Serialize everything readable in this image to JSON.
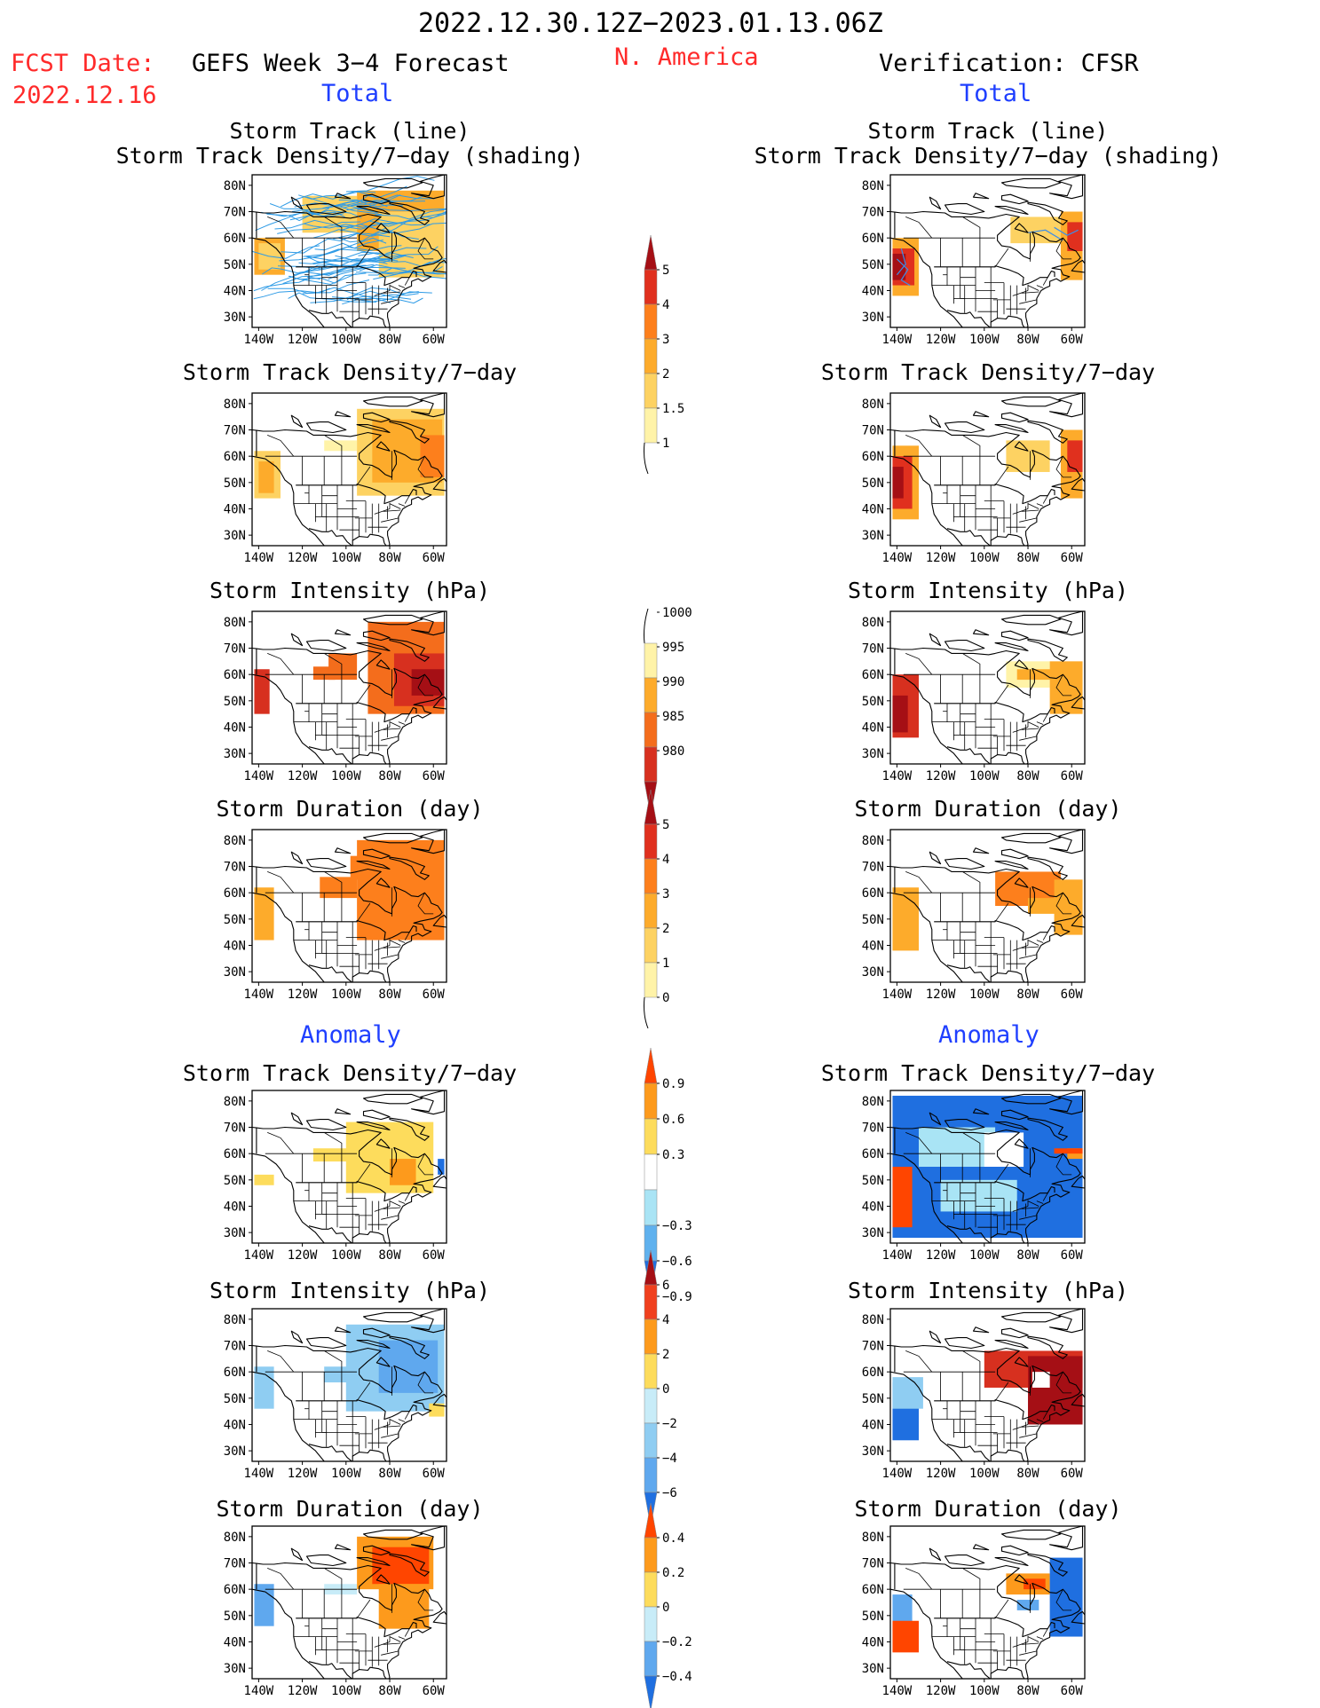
{
  "header": {
    "valid_period": "2022.12.30.12Z−2023.01.13.06Z",
    "fcst_date_label": "FCST Date:",
    "fcst_date": "2022.12.16",
    "region": "N. America",
    "left_title": "GEFS Week 3−4 Forecast",
    "right_title": "Verification: CFSR"
  },
  "sections": {
    "total_label": "Total",
    "anomaly_label": "Anomaly"
  },
  "panel_titles": {
    "track": "Storm Track (line)",
    "track_sub": "Storm Track Density/7−day (shading)",
    "density": "Storm Track Density/7−day",
    "intensity": "Storm Intensity (hPa)",
    "duration": "Storm Duration (day)"
  },
  "axes": {
    "lat_ticks": [
      "80N",
      "70N",
      "60N",
      "50N",
      "40N",
      "30N"
    ],
    "lon_ticks": [
      "140W",
      "120W",
      "100W",
      "80W",
      "60W"
    ]
  },
  "colorbars": [
    {
      "id": "density_total",
      "labels": [
        "5",
        "4",
        "3",
        "2",
        "1.5",
        "1"
      ],
      "colors": [
        "#a50f15",
        "#e0301e",
        "#fd7f1c",
        "#fdab2b",
        "#fdd262",
        "#fff3a8"
      ],
      "open_end": "bottom"
    },
    {
      "id": "intensity_total",
      "labels": [
        "1000",
        "995",
        "990",
        "985",
        "980"
      ],
      "colors": [
        "#fff3a8",
        "#fdab2b",
        "#f46d1c",
        "#d7301f",
        "#a50f15"
      ],
      "open_end": "top"
    },
    {
      "id": "duration_total",
      "labels": [
        "5",
        "4",
        "3",
        "2",
        "1",
        "0"
      ],
      "colors": [
        "#a50f15",
        "#e0301e",
        "#fd7f1c",
        "#fdab2b",
        "#fdd262",
        "#fff3a8"
      ],
      "open_end": "bottom"
    },
    {
      "id": "density_anom",
      "labels": [
        "0.9",
        "0.6",
        "0.3",
        "−0.3",
        "−0.6",
        "−0.9"
      ],
      "colors": [
        "#ff4500",
        "#fd9a1c",
        "#fddc5c",
        "#ffffff",
        "#a9e4f5",
        "#5fb1ee",
        "#1f6fe0"
      ]
    },
    {
      "id": "intensity_anom",
      "labels": [
        "6",
        "4",
        "2",
        "0",
        "−2",
        "−4",
        "−6"
      ],
      "colors": [
        "#a50f15",
        "#f0401e",
        "#fd9a1c",
        "#fddc5c",
        "#c8ecf8",
        "#8fcdf2",
        "#5fa8ee",
        "#1f6fe0"
      ]
    },
    {
      "id": "duration_anom",
      "labels": [
        "0.4",
        "0.2",
        "0",
        "−0.2",
        "−0.4"
      ],
      "colors": [
        "#ff4500",
        "#fd9a1c",
        "#fddc5c",
        "#c8ecf8",
        "#5fa8ee",
        "#1f6fe0"
      ]
    }
  ],
  "panels": [
    {
      "col": "forecast",
      "type": "track_total",
      "fields": [
        [
          -142,
          -128,
          46,
          60,
          "#fdab2b"
        ],
        [
          -140,
          -130,
          48,
          58,
          "#fdd262"
        ],
        [
          -120,
          -95,
          62,
          76,
          "#fdd262"
        ],
        [
          -95,
          -55,
          55,
          78,
          "#fdab2b"
        ],
        [
          -85,
          -55,
          45,
          70,
          "#fdd262"
        ]
      ],
      "tracks": true
    },
    {
      "col": "forecast",
      "type": "density_total",
      "fields": [
        [
          -142,
          -130,
          44,
          62,
          "#fdd262"
        ],
        [
          -140,
          -133,
          46,
          58,
          "#fdab2b"
        ],
        [
          -110,
          -95,
          62,
          66,
          "#fff3a8"
        ],
        [
          -95,
          -55,
          45,
          78,
          "#fdd262"
        ],
        [
          -88,
          -56,
          50,
          74,
          "#fdab2b"
        ],
        [
          -66,
          -55,
          52,
          68,
          "#fd7f1c"
        ]
      ]
    },
    {
      "col": "forecast",
      "type": "intensity_total",
      "fields": [
        [
          -142,
          -135,
          45,
          62,
          "#d7301f"
        ],
        [
          -115,
          -105,
          58,
          63,
          "#f46d1c"
        ],
        [
          -108,
          -95,
          58,
          68,
          "#f46d1c"
        ],
        [
          -90,
          -55,
          45,
          80,
          "#f46d1c"
        ],
        [
          -78,
          -55,
          48,
          68,
          "#d7301f"
        ],
        [
          -70,
          -55,
          52,
          62,
          "#a50f15"
        ]
      ]
    },
    {
      "col": "forecast",
      "type": "duration_total",
      "fields": [
        [
          -142,
          -133,
          42,
          62,
          "#fdab2b"
        ],
        [
          -112,
          -95,
          58,
          66,
          "#fd7f1c"
        ],
        [
          -98,
          -88,
          65,
          74,
          "#fd7f1c"
        ],
        [
          -95,
          -55,
          42,
          80,
          "#fd7f1c"
        ]
      ]
    },
    {
      "col": "forecast",
      "type": "density_anom",
      "fields": [
        [
          -142,
          -133,
          48,
          52,
          "#fddc5c"
        ],
        [
          -115,
          -95,
          57,
          62,
          "#fddc5c"
        ],
        [
          -100,
          -60,
          45,
          72,
          "#fddc5c"
        ],
        [
          -80,
          -68,
          48,
          58,
          "#fd9a1c"
        ],
        [
          -58,
          -55,
          52,
          58,
          "#1f6fe0"
        ]
      ]
    },
    {
      "col": "forecast",
      "type": "intensity_anom",
      "fields": [
        [
          -142,
          -133,
          46,
          62,
          "#8fcdf2"
        ],
        [
          -110,
          -95,
          56,
          62,
          "#8fcdf2"
        ],
        [
          -100,
          -55,
          45,
          78,
          "#8fcdf2"
        ],
        [
          -85,
          -58,
          52,
          72,
          "#5fa8ee"
        ],
        [
          -62,
          -55,
          43,
          48,
          "#fddc5c"
        ]
      ]
    },
    {
      "col": "forecast",
      "type": "duration_anom",
      "fields": [
        [
          -142,
          -133,
          46,
          62,
          "#5fa8ee"
        ],
        [
          -110,
          -95,
          58,
          62,
          "#c8ecf8"
        ],
        [
          -95,
          -60,
          60,
          80,
          "#fd9a1c"
        ],
        [
          -88,
          -62,
          62,
          76,
          "#ff4500"
        ],
        [
          -85,
          -62,
          45,
          62,
          "#fd9a1c"
        ]
      ]
    },
    {
      "col": "verification",
      "type": "track_total",
      "fields": [
        [
          -142,
          -130,
          38,
          60,
          "#fdab2b"
        ],
        [
          -142,
          -132,
          42,
          56,
          "#e0301e"
        ],
        [
          -142,
          -136,
          44,
          54,
          "#a50f15"
        ],
        [
          -88,
          -65,
          58,
          68,
          "#fdd262"
        ],
        [
          -65,
          -55,
          44,
          70,
          "#fdab2b"
        ],
        [
          -62,
          -55,
          55,
          66,
          "#e0301e"
        ]
      ],
      "tracks_verif": true
    },
    {
      "col": "verification",
      "type": "density_total",
      "fields": [
        [
          -142,
          -130,
          36,
          64,
          "#fdab2b"
        ],
        [
          -142,
          -133,
          40,
          60,
          "#e0301e"
        ],
        [
          -142,
          -137,
          44,
          56,
          "#a50f15"
        ],
        [
          -90,
          -70,
          54,
          66,
          "#fdd262"
        ],
        [
          -65,
          -55,
          44,
          70,
          "#fdab2b"
        ],
        [
          -62,
          -55,
          54,
          66,
          "#e0301e"
        ]
      ]
    },
    {
      "col": "verification",
      "type": "intensity_total",
      "fields": [
        [
          -142,
          -130,
          36,
          60,
          "#d7301f"
        ],
        [
          -142,
          -135,
          38,
          52,
          "#a50f15"
        ],
        [
          -90,
          -70,
          55,
          65,
          "#fff3a8"
        ],
        [
          -85,
          -65,
          58,
          62,
          "#fdab2b"
        ],
        [
          -70,
          -55,
          45,
          65,
          "#fdab2b"
        ]
      ]
    },
    {
      "col": "verification",
      "type": "duration_total",
      "fields": [
        [
          -142,
          -130,
          38,
          62,
          "#fdab2b"
        ],
        [
          -95,
          -65,
          55,
          68,
          "#fd7f1c"
        ],
        [
          -80,
          -62,
          52,
          58,
          "#fdab2b"
        ],
        [
          -68,
          -55,
          44,
          65,
          "#fdab2b"
        ]
      ]
    },
    {
      "col": "verification",
      "type": "density_anom",
      "fields": [
        [
          -142,
          -55,
          28,
          82,
          "#1f6fe0"
        ],
        [
          -130,
          -95,
          55,
          70,
          "#a9e4f5"
        ],
        [
          -120,
          -85,
          38,
          50,
          "#a9e4f5"
        ],
        [
          -100,
          -82,
          55,
          68,
          "#ffffff"
        ],
        [
          -142,
          -133,
          32,
          55,
          "#ff4500"
        ],
        [
          -62,
          -55,
          58,
          62,
          "#fd9a1c"
        ],
        [
          -68,
          -55,
          60,
          62,
          "#ff4500"
        ]
      ]
    },
    {
      "col": "verification",
      "type": "intensity_anom",
      "fields": [
        [
          -142,
          -130,
          34,
          56,
          "#1f6fe0"
        ],
        [
          -142,
          -128,
          46,
          58,
          "#8fcdf2"
        ],
        [
          -100,
          -55,
          54,
          68,
          "#d7301f"
        ],
        [
          -80,
          -55,
          40,
          66,
          "#a50f15"
        ],
        [
          -78,
          -70,
          54,
          60,
          "#ffffff"
        ]
      ]
    },
    {
      "col": "verification",
      "type": "duration_anom",
      "fields": [
        [
          -142,
          -133,
          44,
          58,
          "#5fa8ee"
        ],
        [
          -142,
          -130,
          36,
          48,
          "#ff4500"
        ],
        [
          -90,
          -70,
          58,
          66,
          "#fd9a1c"
        ],
        [
          -82,
          -72,
          60,
          64,
          "#ff4500"
        ],
        [
          -70,
          -55,
          42,
          72,
          "#1f6fe0"
        ],
        [
          -85,
          -75,
          52,
          56,
          "#5fa8ee"
        ]
      ]
    }
  ]
}
